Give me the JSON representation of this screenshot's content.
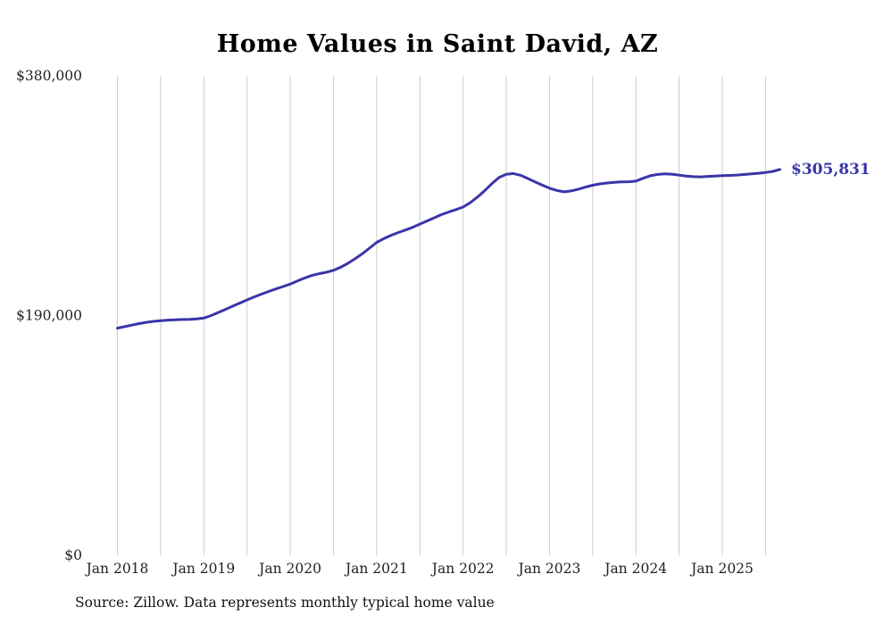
{
  "title": "Home Values in Saint David, AZ",
  "end_label": "$305,831",
  "source_note": "Source: Zillow. Data represents monthly typical home value",
  "colors": {
    "line": "#3a35a9",
    "grid": "#cccccc",
    "axis_text": "#222222",
    "title_text": "#000000"
  },
  "chart_data": {
    "type": "line",
    "title": "Home Values in Saint David, AZ",
    "x_start_month": "Jan 2018",
    "x_end_month": "Sep 2025",
    "x_tick_labels": [
      "Jan 2018",
      "Jan 2019",
      "Jan 2020",
      "Jan 2021",
      "Jan 2022",
      "Jan 2023",
      "Jan 2024",
      "Jan 2025"
    ],
    "x_tick_month_indices": [
      0,
      12,
      24,
      36,
      48,
      60,
      72,
      84
    ],
    "gridline_month_step": 6,
    "gridline_last_month_index": 90,
    "y_tick_values": [
      0,
      190000,
      380000
    ],
    "y_tick_labels": [
      "$0",
      "$190,000",
      "$380,000"
    ],
    "ylim": [
      0,
      380000
    ],
    "grid": "vertical-only",
    "legend": "none",
    "end_value": 305831,
    "series": [
      {
        "name": "Typical home value",
        "values": [
          180000,
          181200,
          182400,
          183600,
          184600,
          185400,
          186000,
          186400,
          186700,
          186900,
          187000,
          187400,
          188000,
          190000,
          192400,
          194900,
          197400,
          199900,
          202400,
          204800,
          207000,
          209100,
          211100,
          213000,
          215000,
          217400,
          219800,
          221800,
          223200,
          224300,
          225900,
          228300,
          231400,
          235000,
          239000,
          243400,
          248000,
          251000,
          253600,
          255800,
          257800,
          260000,
          262500,
          265000,
          267500,
          270000,
          272100,
          274000,
          276000,
          279500,
          284000,
          289000,
          294500,
          299500,
          302000,
          302600,
          301200,
          298600,
          296000,
          293400,
          291000,
          289200,
          288100,
          288800,
          290200,
          291800,
          293300,
          294400,
          295100,
          295600,
          295900,
          296100,
          296600,
          298800,
          300800,
          301900,
          302400,
          302100,
          301300,
          300600,
          300100,
          300000,
          300300,
          300600,
          300900,
          301100,
          301400,
          301800,
          302300,
          302800,
          303400,
          304300,
          305831
        ]
      }
    ]
  }
}
